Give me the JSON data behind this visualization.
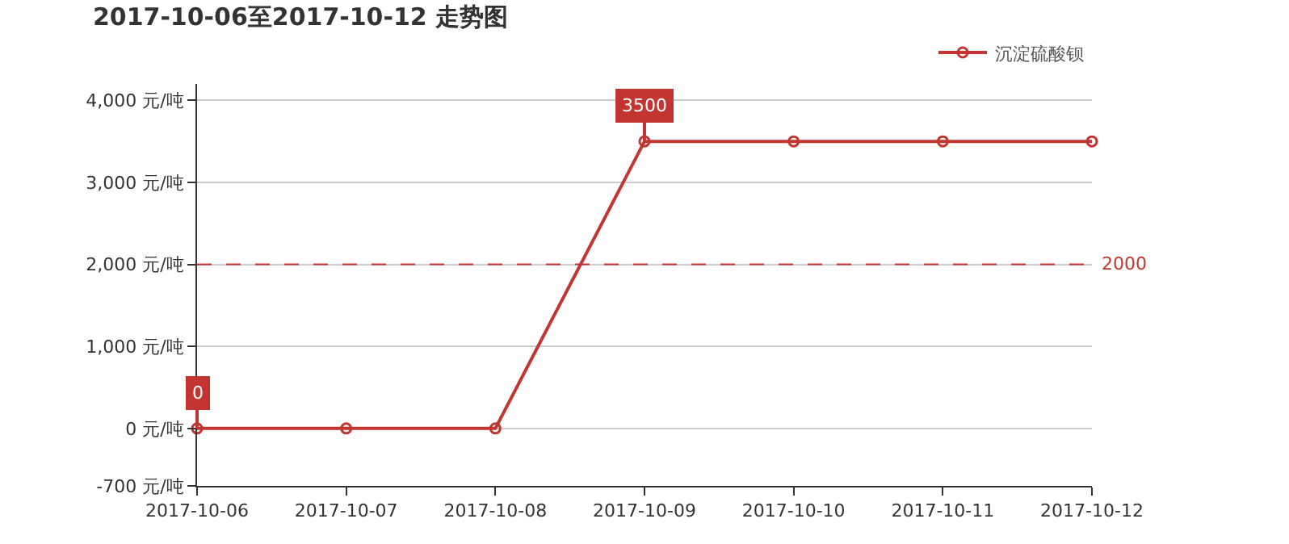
{
  "chart_data": {
    "type": "line",
    "title": "2017-10-06至2017-10-12 走势图",
    "categories": [
      "2017-10-06",
      "2017-10-07",
      "2017-10-08",
      "2017-10-09",
      "2017-10-10",
      "2017-10-11",
      "2017-10-12"
    ],
    "series": [
      {
        "name": "沉淀硫酸钡",
        "color": "#c23531",
        "values": [
          0,
          0,
          0,
          3500,
          3500,
          3500,
          3500
        ]
      }
    ],
    "ylim": [
      -700,
      4200
    ],
    "yticks": [
      {
        "value": -700,
        "label": "-700 元/吨"
      },
      {
        "value": 0,
        "label": "0 元/吨"
      },
      {
        "value": 1000,
        "label": "1,000 元/吨"
      },
      {
        "value": 2000,
        "label": "2,000 元/吨"
      },
      {
        "value": 3000,
        "label": "3,000 元/吨"
      },
      {
        "value": 4000,
        "label": "4,000 元/吨"
      }
    ],
    "ref_lines": [
      {
        "axis": "y",
        "value": 2000,
        "label": "2000",
        "color": "#c23531",
        "line_style": "dashed"
      }
    ],
    "annotations": [
      {
        "text": "0",
        "x": "2017-10-06",
        "y": 0
      },
      {
        "text": "3500",
        "x": "2017-10-09",
        "y": 3500
      }
    ],
    "grid": "y",
    "legend": "top right",
    "marker": "circle",
    "line_style": "solid"
  }
}
